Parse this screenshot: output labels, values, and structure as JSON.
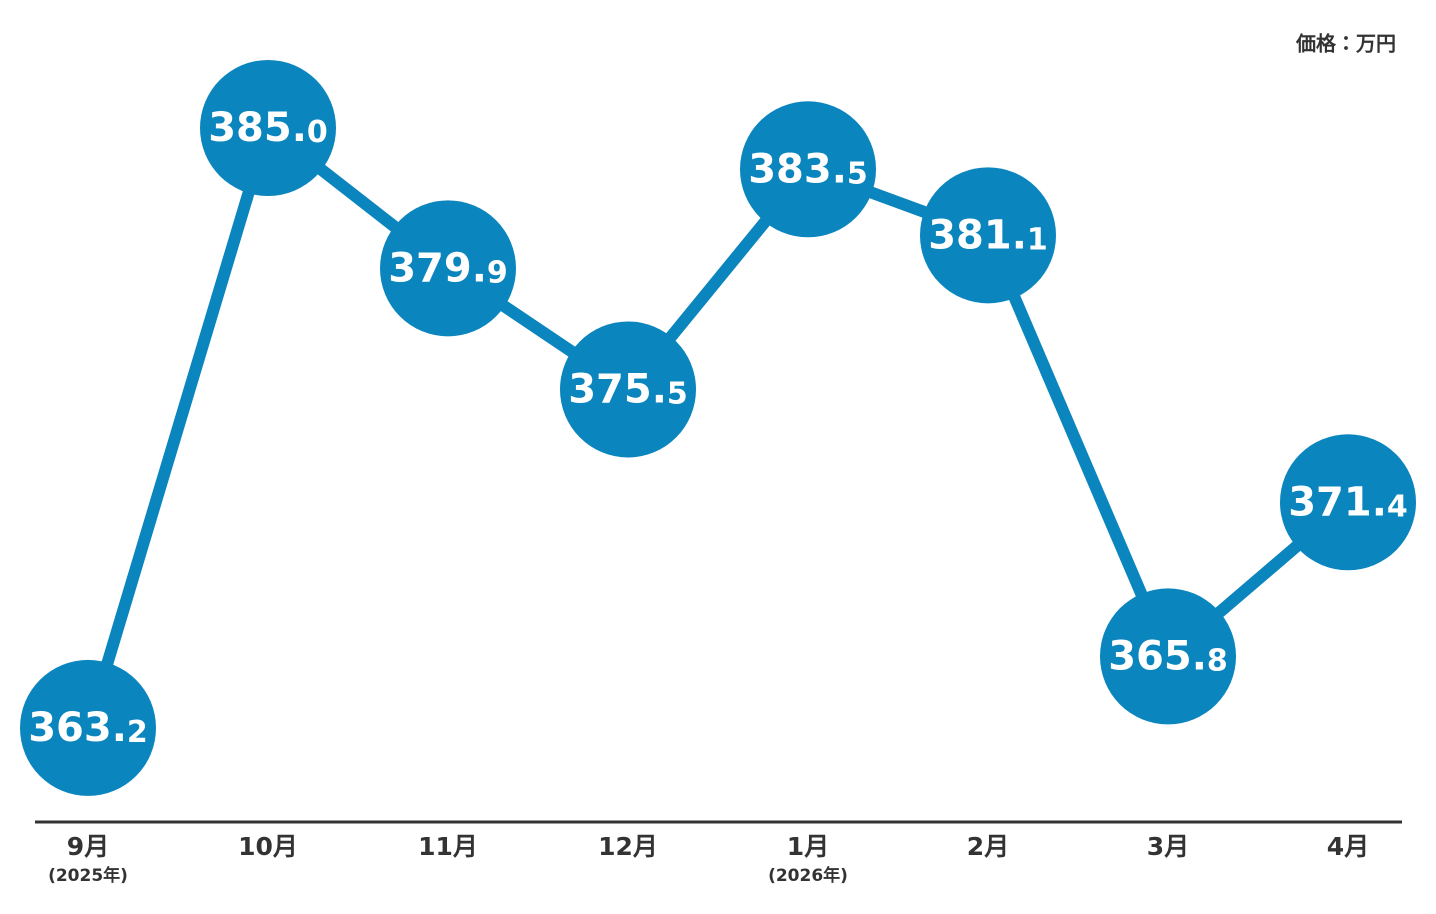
{
  "chart_data": {
    "type": "line",
    "unit_label": "価格：万円",
    "categories": [
      "9月",
      "10月",
      "11月",
      "12月",
      "1月",
      "2月",
      "3月",
      "4月"
    ],
    "category_notes": [
      "(2025年)",
      null,
      null,
      null,
      "(2026年)",
      null,
      null,
      null
    ],
    "values": [
      363.2,
      385.0,
      379.9,
      375.5,
      383.5,
      381.1,
      365.8,
      371.4
    ],
    "value_labels": [
      "363.2",
      "385.0",
      "379.9",
      "375.5",
      "383.5",
      "381.1",
      "365.8",
      "371.4"
    ],
    "color": "#0a85bd",
    "ylim": [
      360,
      390
    ]
  }
}
